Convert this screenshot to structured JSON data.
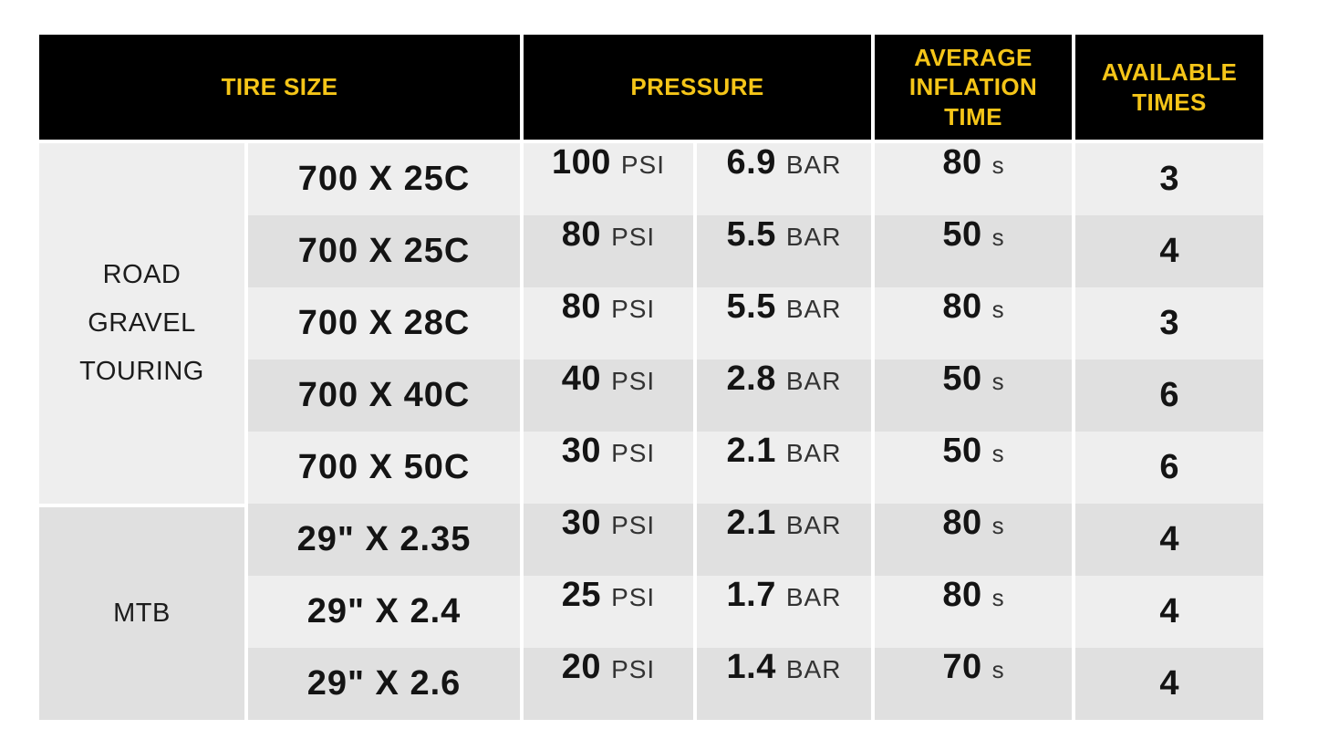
{
  "header": {
    "tire_size": "TIRE SIZE",
    "pressure": "PRESSURE",
    "avg_inflation_time": "AVERAGE INFLATION TIME",
    "available_times": "AVAILABLE TIMES"
  },
  "categories": {
    "road": {
      "lines": [
        "ROAD",
        "GRAVEL",
        "TOURING"
      ]
    },
    "mtb": {
      "lines": [
        "MTB"
      ]
    }
  },
  "units": {
    "psi": "PSI",
    "bar": "BAR",
    "seconds": "s"
  },
  "rows": [
    {
      "size": "700 X 25C",
      "psi": "100",
      "bar": "6.9",
      "time": "80",
      "times": "3"
    },
    {
      "size": "700 X 25C",
      "psi": "80",
      "bar": "5.5",
      "time": "50",
      "times": "4"
    },
    {
      "size": "700 X 28C",
      "psi": "80",
      "bar": "5.5",
      "time": "80",
      "times": "3"
    },
    {
      "size": "700 X 40C",
      "psi": "40",
      "bar": "2.8",
      "time": "50",
      "times": "6"
    },
    {
      "size": "700 X 50C",
      "psi": "30",
      "bar": "2.1",
      "time": "50",
      "times": "6"
    },
    {
      "size": "29\" X 2.35",
      "psi": "30",
      "bar": "2.1",
      "time": "80",
      "times": "4"
    },
    {
      "size": "29\" X 2.4",
      "psi": "25",
      "bar": "1.7",
      "time": "80",
      "times": "4"
    },
    {
      "size": "29\" X 2.6",
      "psi": "20",
      "bar": "1.4",
      "time": "70",
      "times": "4"
    }
  ],
  "colors": {
    "header_bg": "#000000",
    "header_text": "#f5c518",
    "row_light": "#eeeeee",
    "row_dark": "#e0e0e0",
    "value_text": "#141414"
  }
}
